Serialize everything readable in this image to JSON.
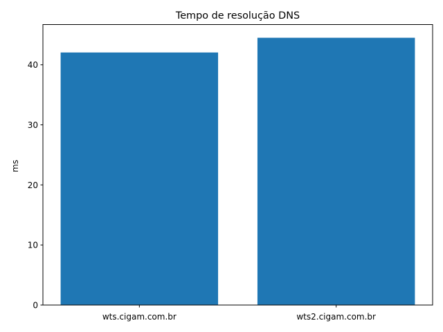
{
  "chart_data": {
    "type": "bar",
    "title": "Tempo de resolução DNS",
    "xlabel": "",
    "ylabel": "ms",
    "categories": [
      "wts.cigam.com.br",
      "wts2.cigam.com.br"
    ],
    "values": [
      42.05,
      44.5
    ],
    "ylim": [
      0,
      46.7
    ],
    "yticks": [
      0,
      10,
      20,
      30,
      40
    ],
    "color": "#1f77b4",
    "grid": false
  }
}
